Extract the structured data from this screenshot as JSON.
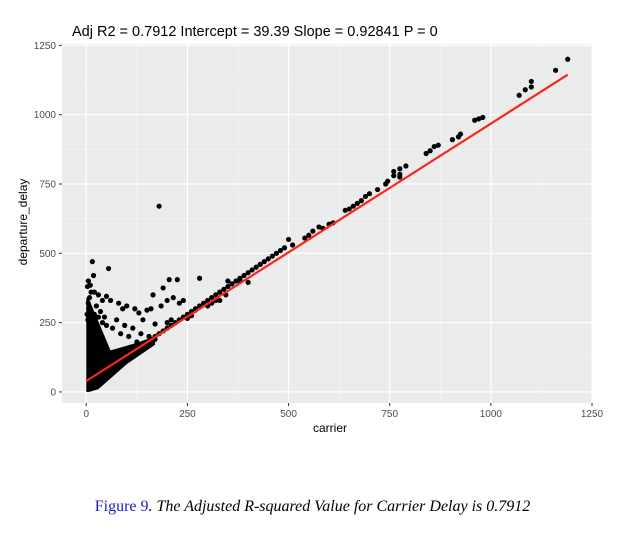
{
  "chart_data": {
    "type": "scatter",
    "title": "Adj R2 =  0.7912 Intercept = 39.39  Slope = 0.92841  P = 0",
    "xlabel": "carrier",
    "ylabel": "departure_delay",
    "xlim": [
      -60,
      1250
    ],
    "ylim": [
      -40,
      1255
    ],
    "x_ticks": [
      0,
      250,
      500,
      750,
      1000,
      1250
    ],
    "x_tick_labels": [
      "0",
      "250",
      "500",
      "750",
      "1000",
      "1250"
    ],
    "y_ticks": [
      0,
      250,
      500,
      750,
      1000,
      1250
    ],
    "y_tick_labels": [
      "0",
      "250",
      "500",
      "750",
      "1000",
      "1250"
    ],
    "grid": true,
    "background": "#ebebeb",
    "point_color": "#000000",
    "fit_line": {
      "intercept": 39.39,
      "slope": 0.92841,
      "x_range": [
        0,
        1190
      ],
      "color": "#f8261f"
    },
    "points": [
      [
        1190,
        1200
      ],
      [
        1160,
        1160
      ],
      [
        1100,
        1120
      ],
      [
        1100,
        1100
      ],
      [
        1085,
        1090
      ],
      [
        1070,
        1070
      ],
      [
        980,
        990
      ],
      [
        970,
        985
      ],
      [
        960,
        980
      ],
      [
        925,
        930
      ],
      [
        920,
        920
      ],
      [
        905,
        910
      ],
      [
        870,
        890
      ],
      [
        860,
        885
      ],
      [
        850,
        870
      ],
      [
        840,
        860
      ],
      [
        790,
        815
      ],
      [
        775,
        805
      ],
      [
        760,
        795
      ],
      [
        775,
        785
      ],
      [
        775,
        775
      ],
      [
        760,
        780
      ],
      [
        745,
        760
      ],
      [
        740,
        750
      ],
      [
        720,
        730
      ],
      [
        700,
        715
      ],
      [
        690,
        705
      ],
      [
        680,
        690
      ],
      [
        670,
        680
      ],
      [
        660,
        670
      ],
      [
        650,
        660
      ],
      [
        640,
        655
      ],
      [
        610,
        610
      ],
      [
        600,
        605
      ],
      [
        585,
        590
      ],
      [
        575,
        595
      ],
      [
        560,
        580
      ],
      [
        550,
        565
      ],
      [
        540,
        555
      ],
      [
        510,
        530
      ],
      [
        500,
        550
      ],
      [
        490,
        520
      ],
      [
        480,
        510
      ],
      [
        470,
        500
      ],
      [
        460,
        490
      ],
      [
        450,
        480
      ],
      [
        440,
        470
      ],
      [
        430,
        460
      ],
      [
        420,
        450
      ],
      [
        410,
        440
      ],
      [
        400,
        430
      ],
      [
        390,
        420
      ],
      [
        380,
        410
      ],
      [
        370,
        400
      ],
      [
        360,
        390
      ],
      [
        350,
        380
      ],
      [
        340,
        370
      ],
      [
        330,
        360
      ],
      [
        320,
        350
      ],
      [
        310,
        340
      ],
      [
        300,
        330
      ],
      [
        290,
        320
      ],
      [
        280,
        310
      ],
      [
        270,
        300
      ],
      [
        260,
        290
      ],
      [
        250,
        280
      ],
      [
        240,
        270
      ],
      [
        230,
        260
      ],
      [
        220,
        250
      ],
      [
        210,
        240
      ],
      [
        200,
        230
      ],
      [
        190,
        220
      ],
      [
        180,
        210
      ],
      [
        170,
        200
      ],
      [
        160,
        190
      ],
      [
        150,
        180
      ],
      [
        140,
        170
      ],
      [
        130,
        160
      ],
      [
        120,
        150
      ],
      [
        110,
        140
      ],
      [
        100,
        130
      ],
      [
        90,
        120
      ],
      [
        80,
        110
      ],
      [
        70,
        100
      ],
      [
        60,
        90
      ],
      [
        180,
        670
      ],
      [
        205,
        405
      ],
      [
        225,
        405
      ],
      [
        280,
        410
      ],
      [
        350,
        400
      ],
      [
        380,
        400
      ],
      [
        400,
        395
      ],
      [
        190,
        375
      ],
      [
        165,
        350
      ],
      [
        230,
        320
      ],
      [
        240,
        330
      ],
      [
        215,
        340
      ],
      [
        200,
        330
      ],
      [
        185,
        310
      ],
      [
        160,
        300
      ],
      [
        150,
        295
      ],
      [
        130,
        285
      ],
      [
        120,
        300
      ],
      [
        100,
        310
      ],
      [
        90,
        300
      ],
      [
        80,
        320
      ],
      [
        60,
        330
      ],
      [
        50,
        345
      ],
      [
        40,
        330
      ],
      [
        30,
        350
      ],
      [
        20,
        360
      ],
      [
        10,
        385
      ],
      [
        5,
        400
      ],
      [
        15,
        470
      ],
      [
        55,
        445
      ],
      [
        18,
        420
      ],
      [
        25,
        310
      ],
      [
        35,
        290
      ],
      [
        45,
        270
      ],
      [
        75,
        260
      ],
      [
        95,
        240
      ],
      [
        115,
        230
      ],
      [
        135,
        210
      ],
      [
        155,
        200
      ],
      [
        170,
        190
      ],
      [
        125,
        180
      ],
      [
        105,
        200
      ],
      [
        85,
        210
      ],
      [
        65,
        230
      ],
      [
        50,
        240
      ],
      [
        40,
        250
      ],
      [
        30,
        270
      ],
      [
        20,
        280
      ],
      [
        10,
        300
      ],
      [
        5,
        320
      ],
      [
        8,
        340
      ],
      [
        12,
        360
      ],
      [
        3,
        380
      ],
      [
        6,
        300
      ],
      [
        2,
        280
      ],
      [
        4,
        260
      ],
      [
        7,
        240
      ],
      [
        9,
        220
      ],
      [
        11,
        200
      ],
      [
        13,
        180
      ],
      [
        15,
        160
      ],
      [
        17,
        140
      ],
      [
        19,
        120
      ],
      [
        21,
        100
      ],
      [
        23,
        80
      ],
      [
        25,
        60
      ],
      [
        27,
        40
      ],
      [
        29,
        30
      ],
      [
        140,
        260
      ],
      [
        170,
        245
      ],
      [
        200,
        250
      ],
      [
        210,
        260
      ],
      [
        250,
        265
      ],
      [
        260,
        275
      ],
      [
        300,
        310
      ],
      [
        310,
        320
      ],
      [
        330,
        330
      ],
      [
        345,
        350
      ],
      [
        320,
        330
      ],
      [
        270,
        295
      ]
    ]
  }
}
